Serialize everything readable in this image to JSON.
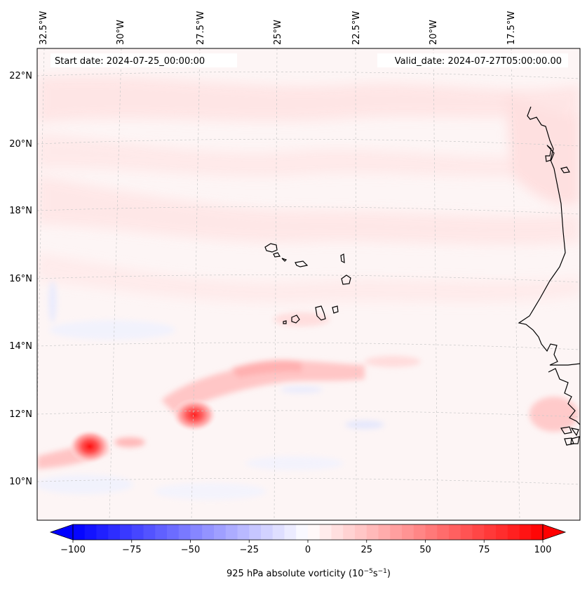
{
  "map": {
    "start_date": "Start date: 2024-07-25_00:00:00",
    "valid_date": "Valid_date: 2024-07-27T05:00:00.00",
    "lon_labels": [
      "32.5°W",
      "30°W",
      "27.5°W",
      "25°W",
      "22.5°W",
      "20°W",
      "17.5°W"
    ],
    "lat_labels": [
      "22°N",
      "20°N",
      "18°N",
      "16°N",
      "14°N",
      "12°N",
      "10°N"
    ],
    "vortex_centers": [
      {
        "name": "vortex-11N-30W",
        "lat": 10.9,
        "lon": -30.7,
        "value": 100
      },
      {
        "name": "vortex-12N-27W",
        "lat": 11.9,
        "lon": -27.8,
        "value": 90
      }
    ]
  },
  "colorbar": {
    "label_prefix": "925 hPa absolute vorticity (10",
    "exp1": "−5",
    "mid": "s",
    "exp2": "−1",
    "label_suffix": ")",
    "ticks": [
      "−100",
      "−75",
      "−50",
      "−25",
      "0",
      "25",
      "50",
      "75",
      "100"
    ],
    "min": -100,
    "max": 100,
    "neg_color": "#0000ff",
    "pos_color": "#ff0000"
  }
}
